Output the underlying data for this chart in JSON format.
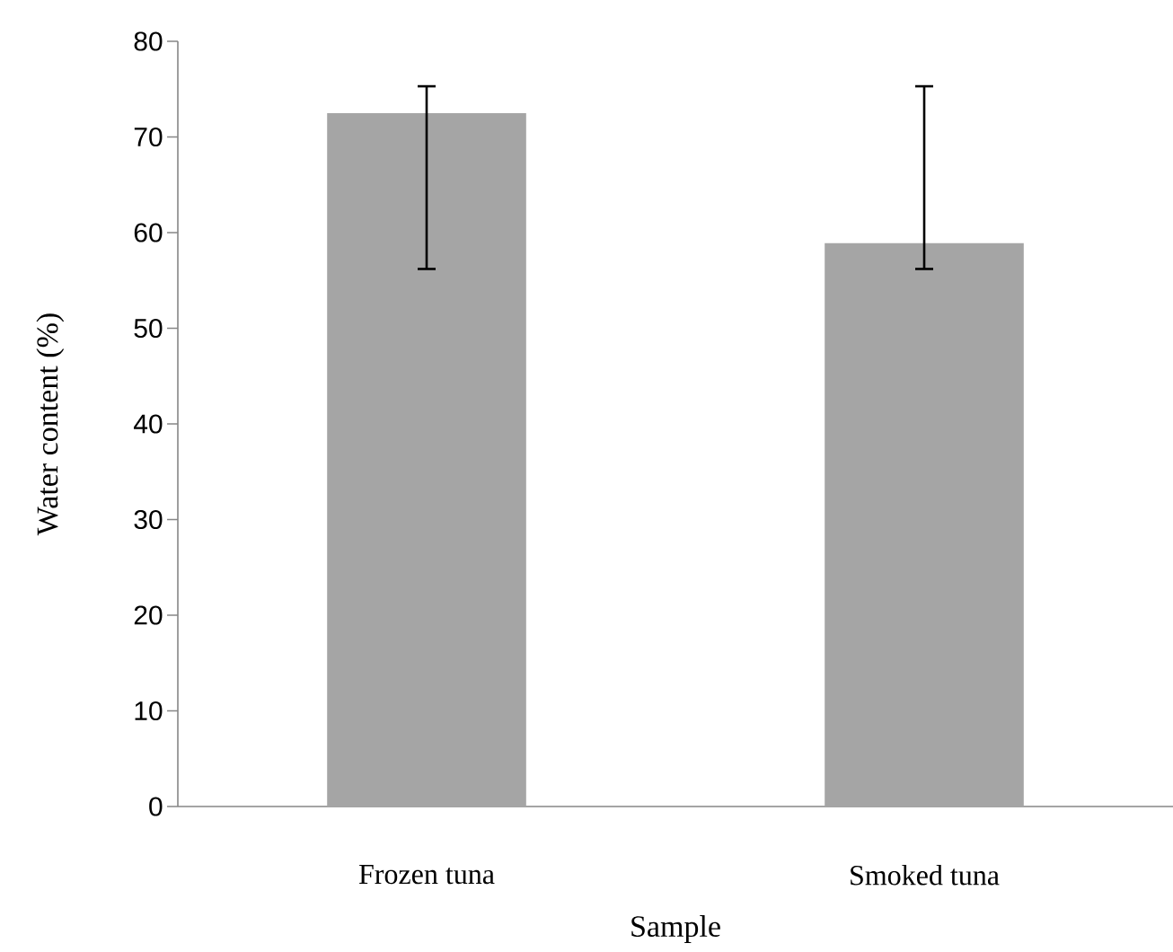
{
  "chart_data": {
    "type": "bar",
    "xlabel": "Sample",
    "ylabel": "Water content (%)",
    "categories": [
      "Frozen tuna",
      "Smoked tuna"
    ],
    "values": [
      72.5,
      58.9
    ],
    "color": "#a5a5a5",
    "errors": [
      [
        56.2,
        75.3
      ],
      [
        56.2,
        75.3
      ]
    ],
    "ylim": [
      0,
      80
    ],
    "yticks": [
      0,
      10,
      20,
      30,
      40,
      50,
      60,
      70,
      80
    ],
    "grid": false
  }
}
